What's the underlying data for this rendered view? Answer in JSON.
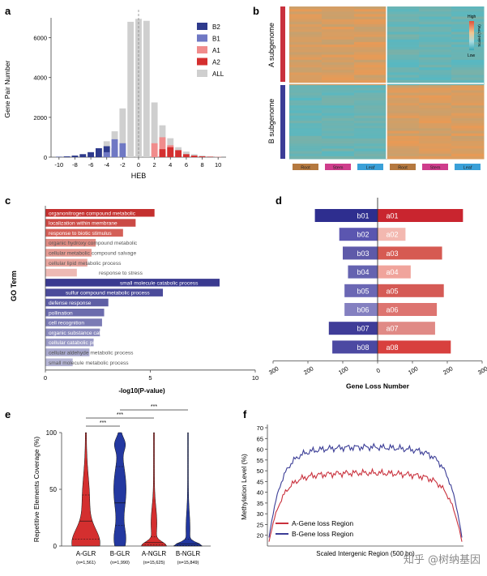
{
  "colors": {
    "b2": "#2e3a8c",
    "b1": "#6f78c4",
    "a1": "#f08c8c",
    "a2": "#d42f2f",
    "all": "#cfcfcf",
    "b_main": "#3b3d96",
    "a_main": "#c9313d",
    "heat_hi": "#e99a55",
    "heat_lo": "#57b8c2"
  },
  "watermark": "知乎 @树纳基因",
  "panels": {
    "a": {
      "letter": "a"
    },
    "b": {
      "letter": "b"
    },
    "c": {
      "letter": "c"
    },
    "d": {
      "letter": "d"
    },
    "e": {
      "letter": "e"
    },
    "f": {
      "letter": "f"
    }
  },
  "chart_data": [
    {
      "id": "a",
      "type": "bar",
      "xlabel": "HEB",
      "ylabel": "Gene Pair Number",
      "ylim": [
        0,
        7000
      ],
      "yticks": [
        0,
        2000,
        4000,
        6000
      ],
      "xlim": [
        -11,
        11
      ],
      "xticks": [
        -10,
        -8,
        -6,
        -4,
        -2,
        0,
        2,
        4,
        6,
        8,
        10
      ],
      "legend": [
        "B2",
        "B1",
        "A1",
        "A2",
        "ALL"
      ],
      "x": [
        -10,
        -9,
        -8,
        -7,
        -6,
        -5,
        -4,
        -3,
        -2,
        -1,
        0,
        1,
        2,
        3,
        4,
        5,
        6,
        7,
        8,
        9,
        10
      ],
      "series": [
        {
          "name": "ALL",
          "values": [
            20,
            40,
            80,
            150,
            250,
            450,
            800,
            1300,
            2450,
            6800,
            6950,
            6850,
            2750,
            1600,
            950,
            500,
            280,
            150,
            80,
            40,
            20
          ]
        },
        {
          "name": "B2",
          "values": [
            20,
            40,
            80,
            150,
            250,
            450,
            550,
            450,
            0,
            0,
            0,
            0,
            0,
            0,
            0,
            0,
            0,
            0,
            0,
            0,
            0
          ]
        },
        {
          "name": "B1",
          "values": [
            0,
            0,
            0,
            0,
            0,
            0,
            250,
            900,
            700,
            0,
            0,
            0,
            0,
            0,
            0,
            0,
            0,
            0,
            0,
            0,
            0
          ]
        },
        {
          "name": "A1",
          "values": [
            0,
            0,
            0,
            0,
            0,
            0,
            0,
            0,
            0,
            0,
            0,
            0,
            700,
            1000,
            600,
            0,
            0,
            0,
            0,
            0,
            0
          ]
        },
        {
          "name": "A2",
          "values": [
            0,
            0,
            0,
            0,
            0,
            0,
            0,
            0,
            0,
            0,
            0,
            0,
            0,
            400,
            500,
            350,
            150,
            80,
            40,
            20,
            10
          ]
        }
      ]
    },
    {
      "id": "b",
      "type": "heatmap",
      "row_groups": [
        "A subgenome",
        "B subgenome"
      ],
      "columns": [
        "Root",
        "Stem",
        "Leaf",
        "Root",
        "Stem",
        "Leaf"
      ],
      "column_colors": [
        "#b5793f",
        "#cf3d8c",
        "#3aa0d8",
        "#b5793f",
        "#cf3d8c",
        "#3aa0d8"
      ],
      "color_scale": {
        "label": "Scaled (TPM)",
        "high": "High",
        "low": "Low"
      }
    },
    {
      "id": "c",
      "type": "bar",
      "orientation": "horizontal",
      "ylabel": "GO Term",
      "xlabel": "-log10(P-value)",
      "xlim": [
        0,
        10
      ],
      "xticks": [
        0,
        5,
        10
      ],
      "categories": [
        "organonitrogen compound metabolic",
        "localization within membrane",
        "response to biotic stimulus",
        "organic hydroxy compound metabolic",
        "cellular metabolic compound salvage",
        "cellular lipid metabolic process",
        "response to stress",
        "small molecule catabolic process",
        "sulfur compound metabolic process",
        "defense response",
        "pollination",
        "cell recognition",
        "organic substance catabolic process",
        "cellular catabolic process",
        "cellular aldehyde metabolic process",
        "small molecule metabolic process"
      ],
      "values": [
        5.2,
        4.3,
        3.7,
        2.4,
        2.2,
        2.0,
        1.5,
        8.3,
        5.6,
        3.0,
        2.8,
        2.7,
        2.6,
        2.3,
        2.1,
        1.3
      ],
      "groups": [
        "A",
        "A",
        "A",
        "A",
        "A",
        "A",
        "A",
        "B",
        "B",
        "B",
        "B",
        "B",
        "B",
        "B",
        "B",
        "B"
      ]
    },
    {
      "id": "d",
      "type": "bar",
      "orientation": "diverging",
      "xlabel": "Gene Loss Number",
      "xticks": [
        300,
        200,
        100,
        0,
        100,
        200,
        300
      ],
      "categories_b": [
        "b01",
        "b02",
        "b03",
        "b04",
        "b05",
        "b06",
        "b07",
        "b08"
      ],
      "categories_a": [
        "a01",
        "a02",
        "a03",
        "a04",
        "a05",
        "a06",
        "a07",
        "a08"
      ],
      "values_b": [
        180,
        110,
        100,
        85,
        95,
        95,
        140,
        130
      ],
      "values_a": [
        245,
        80,
        185,
        95,
        190,
        170,
        165,
        210
      ]
    },
    {
      "id": "e",
      "type": "violin",
      "ylabel": "Repetitive Elements Coverage (%)",
      "ylim": [
        0,
        100
      ],
      "yticks": [
        0,
        50,
        100
      ],
      "categories": [
        "A-GLR",
        "B-GLR",
        "A-NGLR",
        "B-NGLR"
      ],
      "counts": [
        "(n=1,561)",
        "(n=1,990)",
        "(n=15,625)",
        "(n=15,849)"
      ],
      "significance": [
        "***",
        "***",
        "***"
      ],
      "medians": [
        22,
        38,
        3,
        2
      ],
      "quartiles": [
        [
          6,
          45
        ],
        [
          18,
          70
        ],
        [
          1,
          8
        ],
        [
          0.5,
          6
        ]
      ]
    },
    {
      "id": "f",
      "type": "line",
      "ylabel": "Methylation Level (%)",
      "xlabel": "Scaled Intergenic Region (500 bp)",
      "ylim": [
        15,
        70
      ],
      "yticks": [
        20,
        25,
        30,
        35,
        40,
        45,
        50,
        55,
        60,
        65,
        70
      ],
      "series": [
        {
          "name": "A-Gene loss Region",
          "edge": 17,
          "plateau": 49
        },
        {
          "name": "B-Gene loss Region",
          "edge": 19,
          "plateau": 61
        }
      ]
    }
  ]
}
